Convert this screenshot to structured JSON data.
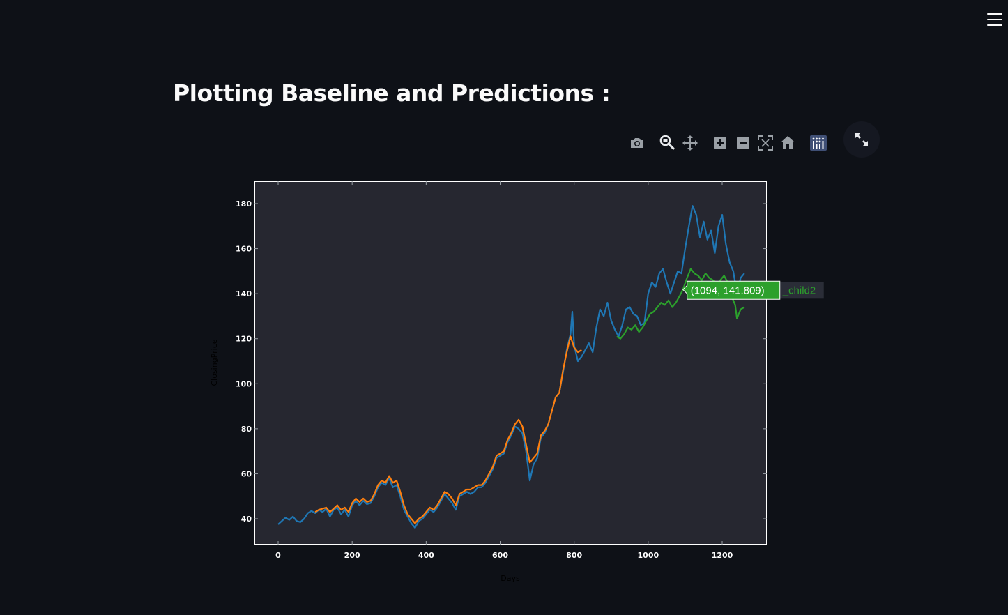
{
  "header": {
    "menu_icon": "hamburger-menu-icon",
    "title": "Plotting Baseline and Predictions :"
  },
  "toolbar": {
    "buttons": [
      {
        "name": "camera-icon",
        "label": "Download plot as a png"
      },
      {
        "name": "zoom-icon",
        "label": "Zoom",
        "active": true
      },
      {
        "name": "pan-icon",
        "label": "Pan"
      },
      {
        "name": "zoom-in-icon",
        "label": "Zoom in"
      },
      {
        "name": "zoom-out-icon",
        "label": "Zoom out"
      },
      {
        "name": "autoscale-icon",
        "label": "Autoscale"
      },
      {
        "name": "reset-axes-icon",
        "label": "Reset axes"
      },
      {
        "name": "plotly-logo-icon",
        "label": "Produced with Plotly"
      }
    ],
    "fullscreen_icon": "expand-icon"
  },
  "colors": {
    "background": "#0e1117",
    "plot_background": "#262730",
    "baseline": "#1f77b4",
    "train_prediction": "#ff7f0e",
    "test_prediction": "#2ca02c",
    "tooltip_bg": "#2ca02c"
  },
  "tooltip": {
    "text": "(1094, 141.809)",
    "series_label": "_child2",
    "x": 1094,
    "y": 141.809
  },
  "chart_data": {
    "type": "line",
    "title": "",
    "xlabel": "Days",
    "ylabel": "ClosingPrice",
    "xlim": [
      -65,
      1320
    ],
    "ylim": [
      28,
      190
    ],
    "xticks": [
      0,
      200,
      400,
      600,
      800,
      1000,
      1200
    ],
    "yticks": [
      40,
      60,
      80,
      100,
      120,
      140,
      160,
      180
    ],
    "grid": false,
    "legend": "none",
    "series": [
      {
        "name": "",
        "color": "#1f77b4",
        "points": [
          [
            0,
            37.5
          ],
          [
            10,
            39
          ],
          [
            20,
            40.5
          ],
          [
            30,
            39.5
          ],
          [
            40,
            41
          ],
          [
            50,
            39
          ],
          [
            60,
            38.5
          ],
          [
            70,
            40
          ],
          [
            80,
            42.5
          ],
          [
            90,
            43.5
          ],
          [
            100,
            42.5
          ],
          [
            110,
            44
          ],
          [
            120,
            43
          ],
          [
            130,
            44.5
          ],
          [
            140,
            41
          ],
          [
            150,
            44
          ],
          [
            160,
            45
          ],
          [
            170,
            42
          ],
          [
            180,
            44
          ],
          [
            190,
            41
          ],
          [
            200,
            46
          ],
          [
            210,
            48
          ],
          [
            220,
            46
          ],
          [
            230,
            48
          ],
          [
            240,
            46.5
          ],
          [
            250,
            47
          ],
          [
            260,
            50
          ],
          [
            270,
            54
          ],
          [
            280,
            56
          ],
          [
            290,
            55
          ],
          [
            300,
            58
          ],
          [
            310,
            54
          ],
          [
            320,
            55
          ],
          [
            330,
            50
          ],
          [
            340,
            44
          ],
          [
            350,
            41
          ],
          [
            360,
            38
          ],
          [
            370,
            36
          ],
          [
            380,
            39
          ],
          [
            390,
            40
          ],
          [
            400,
            42
          ],
          [
            410,
            44
          ],
          [
            420,
            43
          ],
          [
            430,
            45
          ],
          [
            440,
            48
          ],
          [
            450,
            51
          ],
          [
            460,
            49
          ],
          [
            470,
            47
          ],
          [
            480,
            44
          ],
          [
            490,
            50
          ],
          [
            500,
            51
          ],
          [
            510,
            52
          ],
          [
            520,
            51
          ],
          [
            530,
            52
          ],
          [
            540,
            54
          ],
          [
            550,
            54
          ],
          [
            560,
            56
          ],
          [
            570,
            59
          ],
          [
            580,
            62
          ],
          [
            590,
            67
          ],
          [
            600,
            68
          ],
          [
            610,
            69
          ],
          [
            620,
            74
          ],
          [
            630,
            77
          ],
          [
            640,
            81
          ],
          [
            650,
            80
          ],
          [
            660,
            78
          ],
          [
            670,
            70
          ],
          [
            680,
            57
          ],
          [
            690,
            64
          ],
          [
            700,
            67
          ],
          [
            710,
            76
          ],
          [
            720,
            78
          ],
          [
            730,
            82
          ],
          [
            740,
            88
          ],
          [
            750,
            94
          ],
          [
            760,
            96
          ],
          [
            770,
            105
          ],
          [
            780,
            115
          ],
          [
            790,
            122
          ],
          [
            795,
            132
          ],
          [
            800,
            117
          ],
          [
            810,
            110
          ],
          [
            820,
            112
          ],
          [
            830,
            115
          ],
          [
            840,
            118
          ],
          [
            850,
            114
          ],
          [
            860,
            125
          ],
          [
            870,
            133
          ],
          [
            880,
            130
          ],
          [
            890,
            136
          ],
          [
            900,
            128
          ],
          [
            910,
            124
          ],
          [
            920,
            121
          ],
          [
            930,
            126
          ],
          [
            940,
            133
          ],
          [
            950,
            134
          ],
          [
            960,
            131
          ],
          [
            970,
            130
          ],
          [
            980,
            126
          ],
          [
            990,
            127
          ],
          [
            1000,
            140
          ],
          [
            1010,
            145
          ],
          [
            1020,
            143
          ],
          [
            1030,
            149
          ],
          [
            1040,
            151
          ],
          [
            1050,
            145
          ],
          [
            1060,
            140
          ],
          [
            1070,
            145
          ],
          [
            1080,
            150
          ],
          [
            1090,
            149
          ],
          [
            1100,
            160
          ],
          [
            1110,
            170
          ],
          [
            1120,
            179
          ],
          [
            1130,
            175
          ],
          [
            1140,
            165
          ],
          [
            1150,
            172
          ],
          [
            1160,
            164
          ],
          [
            1170,
            168
          ],
          [
            1180,
            158
          ],
          [
            1190,
            170
          ],
          [
            1200,
            175
          ],
          [
            1210,
            162
          ],
          [
            1220,
            154
          ],
          [
            1230,
            150
          ],
          [
            1240,
            140
          ],
          [
            1250,
            147
          ],
          [
            1260,
            149
          ]
        ]
      },
      {
        "name": "",
        "color": "#ff7f0e",
        "points": [
          [
            100,
            43
          ],
          [
            110,
            44
          ],
          [
            120,
            44.5
          ],
          [
            130,
            45
          ],
          [
            140,
            43
          ],
          [
            150,
            44.5
          ],
          [
            160,
            46
          ],
          [
            170,
            44
          ],
          [
            180,
            45
          ],
          [
            190,
            43
          ],
          [
            200,
            47
          ],
          [
            210,
            49
          ],
          [
            220,
            47.5
          ],
          [
            230,
            49
          ],
          [
            240,
            47.5
          ],
          [
            250,
            48
          ],
          [
            260,
            51
          ],
          [
            270,
            55
          ],
          [
            280,
            57
          ],
          [
            290,
            56
          ],
          [
            300,
            59
          ],
          [
            310,
            56
          ],
          [
            320,
            57
          ],
          [
            330,
            52
          ],
          [
            340,
            46
          ],
          [
            350,
            42
          ],
          [
            360,
            40
          ],
          [
            370,
            38
          ],
          [
            380,
            40
          ],
          [
            390,
            41
          ],
          [
            400,
            43
          ],
          [
            410,
            45
          ],
          [
            420,
            44
          ],
          [
            430,
            46
          ],
          [
            440,
            49
          ],
          [
            450,
            52
          ],
          [
            460,
            51
          ],
          [
            470,
            49
          ],
          [
            480,
            46
          ],
          [
            490,
            51
          ],
          [
            500,
            52
          ],
          [
            510,
            53
          ],
          [
            520,
            53
          ],
          [
            530,
            54
          ],
          [
            540,
            55
          ],
          [
            550,
            55
          ],
          [
            560,
            57
          ],
          [
            570,
            60
          ],
          [
            580,
            63
          ],
          [
            590,
            68
          ],
          [
            600,
            69
          ],
          [
            610,
            70
          ],
          [
            620,
            75
          ],
          [
            630,
            78
          ],
          [
            640,
            82
          ],
          [
            650,
            84
          ],
          [
            660,
            81
          ],
          [
            670,
            73
          ],
          [
            680,
            65
          ],
          [
            690,
            67
          ],
          [
            700,
            69
          ],
          [
            710,
            77
          ],
          [
            720,
            79
          ],
          [
            730,
            82
          ],
          [
            740,
            88
          ],
          [
            750,
            94
          ],
          [
            760,
            96
          ],
          [
            770,
            106
          ],
          [
            780,
            114
          ],
          [
            790,
            121
          ],
          [
            800,
            116
          ],
          [
            810,
            114
          ],
          [
            820,
            115
          ]
        ]
      },
      {
        "name": "",
        "color": "#2ca02c",
        "points": [
          [
            915,
            121
          ],
          [
            925,
            120
          ],
          [
            935,
            122
          ],
          [
            945,
            125
          ],
          [
            955,
            124
          ],
          [
            965,
            126
          ],
          [
            975,
            123
          ],
          [
            985,
            125
          ],
          [
            995,
            128
          ],
          [
            1005,
            131
          ],
          [
            1015,
            132
          ],
          [
            1025,
            134
          ],
          [
            1035,
            136
          ],
          [
            1045,
            135
          ],
          [
            1055,
            137
          ],
          [
            1065,
            134
          ],
          [
            1075,
            136
          ],
          [
            1085,
            139
          ],
          [
            1094,
            141.8
          ],
          [
            1105,
            147
          ],
          [
            1115,
            151
          ],
          [
            1125,
            149
          ],
          [
            1135,
            148
          ],
          [
            1145,
            146
          ],
          [
            1155,
            149
          ],
          [
            1165,
            147
          ],
          [
            1175,
            146
          ],
          [
            1185,
            144
          ],
          [
            1195,
            146
          ],
          [
            1205,
            148
          ],
          [
            1215,
            145
          ],
          [
            1225,
            139
          ],
          [
            1235,
            135
          ],
          [
            1240,
            129
          ],
          [
            1250,
            133
          ],
          [
            1260,
            134
          ]
        ]
      }
    ]
  }
}
